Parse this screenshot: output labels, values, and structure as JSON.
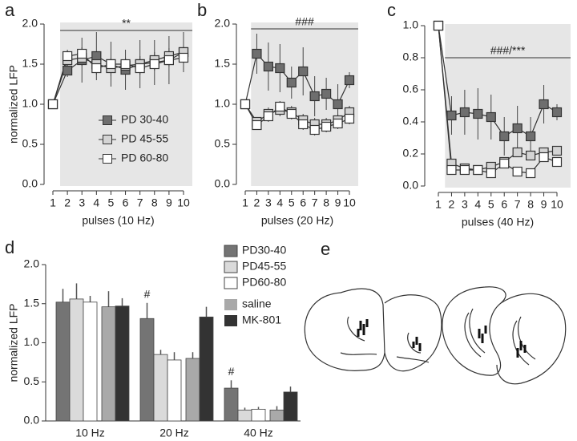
{
  "chart_data": [
    {
      "type": "line",
      "panel": "a",
      "ylabel": "normalized LFP",
      "xlabel": "pulses (10 Hz)",
      "annotation": "**",
      "legend": "lower right",
      "categories": [
        "1",
        "2",
        "3",
        "4",
        "5",
        "6",
        "7",
        "8",
        "9",
        "10"
      ],
      "ylim": [
        0,
        2
      ],
      "yticks": [
        {
          "value": 0,
          "label": "0.0"
        },
        0.5,
        {
          "value": 1,
          "label": "1.0"
        },
        1.5,
        {
          "value": 2,
          "label": "2.0"
        }
      ],
      "series": [
        {
          "name": "PD 30-40",
          "color": "#6e6e6e",
          "values": [
            1.0,
            1.42,
            1.55,
            1.6,
            1.5,
            1.43,
            1.5,
            1.52,
            1.55,
            1.65
          ],
          "errors": [
            0,
            0.08,
            0.28,
            0.3,
            0.28,
            0.25,
            0.3,
            0.28,
            0.3,
            0.25
          ]
        },
        {
          "name": "PD 45-55",
          "color": "#d4d4d4",
          "values": [
            1.0,
            1.55,
            1.58,
            1.5,
            1.45,
            1.48,
            1.5,
            1.55,
            1.6,
            1.65
          ],
          "errors": [
            0,
            0.1,
            0.1,
            0.1,
            0.1,
            0.1,
            0.1,
            0.1,
            0.1,
            0.1
          ]
        },
        {
          "name": "PD 60-80",
          "color": "#ffffff",
          "values": [
            1.0,
            1.6,
            1.63,
            1.45,
            1.5,
            1.5,
            1.45,
            1.5,
            1.55,
            1.58
          ],
          "errors": [
            0,
            0.08,
            0.08,
            0.08,
            0.08,
            0.08,
            0.08,
            0.08,
            0.08,
            0.08
          ]
        }
      ]
    },
    {
      "type": "line",
      "panel": "b",
      "xlabel": "pulses (20 Hz)",
      "annotation": "###",
      "categories": [
        "1",
        "2",
        "3",
        "4",
        "5",
        "6",
        "7",
        "8",
        "9",
        "10"
      ],
      "ylim": [
        0,
        2
      ],
      "yticks": [
        {
          "value": 0,
          "label": "0.0"
        },
        0.5,
        {
          "value": 1,
          "label": "1.0"
        },
        1.5,
        {
          "value": 2,
          "label": "2.0"
        }
      ],
      "series": [
        {
          "color": "#6e6e6e",
          "values": [
            1.0,
            1.63,
            1.47,
            1.45,
            1.27,
            1.41,
            1.1,
            1.13,
            1.0,
            1.3
          ],
          "errors": [
            0,
            0.25,
            0.3,
            0.3,
            0.2,
            0.3,
            0.25,
            0.2,
            0.25,
            0.1
          ]
        },
        {
          "color": "#d4d4d4",
          "values": [
            1.0,
            0.78,
            0.88,
            0.93,
            0.9,
            0.8,
            0.75,
            0.75,
            0.8,
            0.9
          ],
          "errors": [
            0,
            0.06,
            0.08,
            0.08,
            0.08,
            0.08,
            0.08,
            0.08,
            0.08,
            0.08
          ]
        },
        {
          "color": "#ffffff",
          "values": [
            1.0,
            0.74,
            0.85,
            0.97,
            0.88,
            0.75,
            0.68,
            0.72,
            0.76,
            0.82
          ],
          "errors": [
            0,
            0.06,
            0.07,
            0.07,
            0.07,
            0.07,
            0.07,
            0.07,
            0.07,
            0.07
          ]
        }
      ]
    },
    {
      "type": "line",
      "panel": "c",
      "xlabel": "pulses (40 Hz)",
      "annotation": "###/***",
      "categories": [
        "1",
        "2",
        "3",
        "4",
        "5",
        "6",
        "7",
        "8",
        "9",
        "10"
      ],
      "ylim": [
        0,
        1
      ],
      "yticks": [
        {
          "value": 0,
          "label": "0.0"
        },
        0.2,
        0.4,
        0.6,
        0.8,
        {
          "value": 1,
          "label": "1.0"
        }
      ],
      "series": [
        {
          "color": "#6e6e6e",
          "values": [
            1.0,
            0.44,
            0.46,
            0.45,
            0.43,
            0.31,
            0.36,
            0.31,
            0.51,
            0.46
          ],
          "errors": [
            0,
            0.12,
            0.14,
            0.16,
            0.14,
            0.12,
            0.14,
            0.12,
            0.12,
            0.05
          ]
        },
        {
          "color": "#d4d4d4",
          "values": [
            1.0,
            0.14,
            0.11,
            0.1,
            0.12,
            0.15,
            0.21,
            0.19,
            0.21,
            0.22
          ],
          "errors": [
            0,
            0.03,
            0.03,
            0.03,
            0.03,
            0.03,
            0.03,
            0.03,
            0.03,
            0.03
          ]
        },
        {
          "color": "#ffffff",
          "values": [
            1.0,
            0.1,
            0.1,
            0.1,
            0.08,
            0.14,
            0.09,
            0.08,
            0.18,
            0.15
          ],
          "errors": [
            0,
            0.03,
            0.03,
            0.03,
            0.03,
            0.03,
            0.03,
            0.03,
            0.03,
            0.03
          ]
        }
      ]
    },
    {
      "type": "bar",
      "panel": "d",
      "ylabel": "normalized LFP",
      "annotations": [
        "#",
        "#"
      ],
      "categories": [
        "10 Hz",
        "20 Hz",
        "40 Hz"
      ],
      "ylim": [
        0,
        2
      ],
      "yticks": [
        {
          "value": 0,
          "label": "0.0"
        },
        0.5,
        {
          "value": 1,
          "label": "1.0"
        },
        1.5,
        {
          "value": 2,
          "label": "2.0"
        }
      ],
      "series": [
        {
          "name": "PD30-40",
          "color": "#747474",
          "values": [
            1.52,
            1.31,
            0.42
          ],
          "errors": [
            0.17,
            0.2,
            0.1
          ]
        },
        {
          "name": "PD45-55",
          "color": "#dadada",
          "values": [
            1.56,
            0.85,
            0.14
          ],
          "errors": [
            0.2,
            0.06,
            0.03
          ]
        },
        {
          "name": "PD60-80",
          "color": "#ffffff",
          "values": [
            1.52,
            0.78,
            0.15
          ],
          "errors": [
            0.08,
            0.1,
            0.03
          ]
        },
        {
          "name": "saline",
          "color": "#a9a9a9",
          "values": [
            1.46,
            0.8,
            0.14
          ],
          "errors": [
            0.2,
            0.08,
            0.05
          ]
        },
        {
          "name": "MK-801",
          "color": "#333333",
          "values": [
            1.47,
            1.33,
            0.37
          ],
          "errors": [
            0.1,
            0.13,
            0.07
          ]
        }
      ]
    }
  ],
  "panel_e": {
    "label": "e"
  }
}
